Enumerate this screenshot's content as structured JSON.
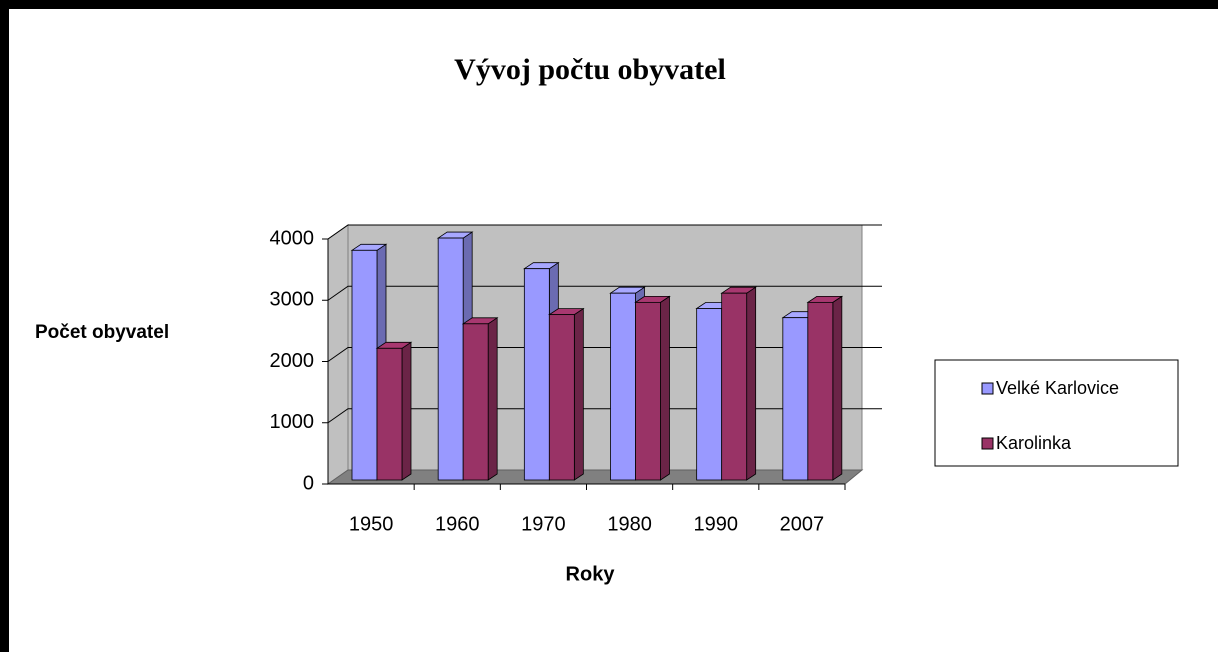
{
  "chart_data": {
    "type": "bar3d",
    "title": "Vývoj počtu obyvatel",
    "x_label": "Roky",
    "y_label": "Počet obyvatel",
    "categories": [
      "1950",
      "1960",
      "1970",
      "1980",
      "1990",
      "2007"
    ],
    "series": [
      {
        "name": "Velké Karlovice",
        "color": "#9999ff",
        "values": [
          3750,
          3950,
          3450,
          3050,
          2800,
          2650
        ]
      },
      {
        "name": "Karolinka",
        "color": "#993366",
        "values": [
          2150,
          2550,
          2700,
          2900,
          3050,
          2900
        ]
      }
    ],
    "ylim": [
      0,
      4000
    ],
    "yticks": [
      0,
      1000,
      2000,
      3000,
      4000
    ],
    "grid": true,
    "legend": "right"
  }
}
